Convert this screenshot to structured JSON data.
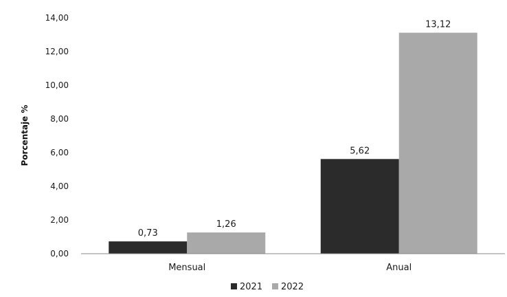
{
  "chart_data": {
    "type": "bar",
    "title": "",
    "xlabel": "",
    "ylabel": "Porcentaje %",
    "categories": [
      "Mensual",
      "Anual"
    ],
    "series": [
      {
        "name": "2021",
        "values": [
          0.73,
          5.62
        ],
        "labels": [
          "0,73",
          "5,62"
        ],
        "color": "#2b2b2b"
      },
      {
        "name": "2022",
        "values": [
          1.26,
          13.12
        ],
        "labels": [
          "1,26",
          "13,12"
        ],
        "color": "#a9a9a9"
      }
    ],
    "ylim": [
      0,
      14
    ],
    "yticks": [
      0,
      2,
      4,
      6,
      8,
      10,
      12,
      14
    ],
    "ytick_labels": [
      "0,00",
      "2,00",
      "4,00",
      "6,00",
      "8,00",
      "10,00",
      "12,00",
      "14,00"
    ],
    "grid": false,
    "legend_position": "bottom-center"
  }
}
